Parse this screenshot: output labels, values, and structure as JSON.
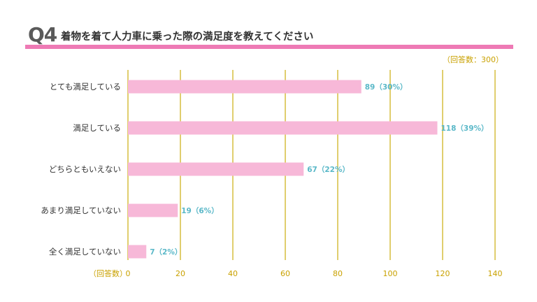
{
  "header": {
    "question_number": "Q4",
    "title": "着物を着て人力車に乗った際の満足度を教えてください",
    "accent_color": "#ee7ab5"
  },
  "respondent_note": "（回答数：300）",
  "axis_unit_label": "（回答数）",
  "chart_data": {
    "type": "bar",
    "orientation": "horizontal",
    "categories": [
      "とても満足している",
      "満足している",
      "どちらともいえない",
      "あまり満足していない",
      "全く満足していない"
    ],
    "values": [
      89,
      118,
      67,
      19,
      7
    ],
    "data_labels": [
      "89（30%）",
      "118（39%）",
      "67（22%）",
      "19（6%）",
      "7（2%）"
    ],
    "xlim": [
      0,
      140
    ],
    "xticks": [
      0,
      20,
      40,
      60,
      80,
      100,
      120,
      140
    ],
    "grid": true,
    "colors": {
      "bar": "#f7b8d8",
      "grid": "#d8c24a",
      "tick_label": "#c9a100",
      "data_label": "#5ab8c8",
      "category_label": "#333333"
    }
  }
}
